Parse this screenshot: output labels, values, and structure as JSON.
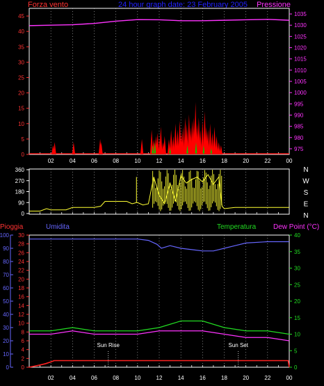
{
  "chart_data": [
    {
      "type": "area",
      "header": {
        "left": "Forza vento",
        "center": "24 hour graph date: 23 February 2005",
        "right": "Pressione"
      },
      "colors": {
        "wind": "#ff0000",
        "gust": "#00cc00",
        "pressure": "#ff33ff",
        "axis_left": "#ff3333",
        "axis_right": "#ff33ff",
        "title": "#2222ff"
      },
      "x_ticks": [
        "02",
        "04",
        "06",
        "08",
        "10",
        "12",
        "14",
        "16",
        "18",
        "20",
        "22",
        "00"
      ],
      "y_left": {
        "ticks": [
          0,
          5,
          10,
          15,
          20,
          25,
          30,
          35,
          40,
          45
        ],
        "range": [
          0,
          47.5
        ]
      },
      "y_right": {
        "ticks": [
          975,
          980,
          985,
          990,
          995,
          1000,
          1005,
          1010,
          1015,
          1020,
          1025,
          1030,
          1035
        ],
        "range": [
          972.5,
          1037.5
        ]
      },
      "pressure": {
        "x": [
          0,
          2,
          4,
          6,
          8,
          10,
          12,
          14,
          16,
          18,
          20,
          22,
          24
        ],
        "values": [
          1029.8,
          1030,
          1030.2,
          1030.8,
          1031.8,
          1032.5,
          1032.4,
          1032,
          1032,
          1032.2,
          1032.4,
          1032.6,
          1032.2
        ]
      },
      "wind_spikes": [
        {
          "x": 2.2,
          "v": 3
        },
        {
          "x": 2.35,
          "v": 4
        },
        {
          "x": 4.1,
          "v": 4
        },
        {
          "x": 6.55,
          "v": 5
        },
        {
          "x": 6.65,
          "v": 4
        },
        {
          "x": 10.4,
          "v": 5
        },
        {
          "x": 11.3,
          "v": 8
        },
        {
          "x": 11.5,
          "v": 5
        },
        {
          "x": 11.7,
          "v": 6
        },
        {
          "x": 11.85,
          "v": 7
        },
        {
          "x": 12.05,
          "v": 5
        },
        {
          "x": 12.15,
          "v": 9
        },
        {
          "x": 12.35,
          "v": 4
        },
        {
          "x": 12.5,
          "v": 6
        },
        {
          "x": 12.9,
          "v": 5
        },
        {
          "x": 13.1,
          "v": 8
        },
        {
          "x": 13.3,
          "v": 6
        },
        {
          "x": 13.5,
          "v": 10
        },
        {
          "x": 13.7,
          "v": 8
        },
        {
          "x": 13.9,
          "v": 11
        },
        {
          "x": 14.05,
          "v": 7
        },
        {
          "x": 14.2,
          "v": 9
        },
        {
          "x": 14.4,
          "v": 12
        },
        {
          "x": 14.55,
          "v": 10
        },
        {
          "x": 14.75,
          "v": 13
        },
        {
          "x": 14.9,
          "v": 9
        },
        {
          "x": 15.05,
          "v": 11
        },
        {
          "x": 15.2,
          "v": 12
        },
        {
          "x": 15.35,
          "v": 17
        },
        {
          "x": 15.5,
          "v": 10
        },
        {
          "x": 15.65,
          "v": 12
        },
        {
          "x": 15.8,
          "v": 8
        },
        {
          "x": 16.0,
          "v": 11
        },
        {
          "x": 16.2,
          "v": 14
        },
        {
          "x": 16.35,
          "v": 9
        },
        {
          "x": 16.5,
          "v": 8
        },
        {
          "x": 16.7,
          "v": 10
        },
        {
          "x": 16.9,
          "v": 7
        },
        {
          "x": 17.1,
          "v": 9
        },
        {
          "x": 17.3,
          "v": 6
        },
        {
          "x": 17.5,
          "v": 4
        },
        {
          "x": 17.7,
          "v": 3
        }
      ],
      "gust_spikes": [
        {
          "x": 11.4,
          "v": 3
        },
        {
          "x": 11.6,
          "v": 4
        },
        {
          "x": 13.0,
          "v": 2
        },
        {
          "x": 14.6,
          "v": 3
        },
        {
          "x": 15.4,
          "v": 4
        },
        {
          "x": 16.1,
          "v": 3
        },
        {
          "x": 16.8,
          "v": 2
        }
      ]
    },
    {
      "type": "line",
      "y_ticks": [
        0,
        90,
        180,
        270,
        360
      ],
      "range": [
        0,
        360
      ],
      "compass": [
        "N",
        "W",
        "S",
        "E",
        "N"
      ],
      "color": "#ffff33",
      "x": [
        0,
        1,
        1.6,
        2,
        2.5,
        3.4,
        4,
        5,
        6,
        6.6,
        7,
        8,
        9,
        9.5,
        9.9,
        10,
        10.5,
        11,
        11.5,
        12,
        12.5,
        13,
        13.5,
        14,
        14.5,
        15,
        15.5,
        16,
        16.5,
        17,
        17.5,
        17.8,
        18,
        19,
        20,
        21,
        22,
        23,
        24
      ],
      "values": [
        20,
        20,
        40,
        30,
        30,
        30,
        50,
        50,
        50,
        60,
        100,
        100,
        100,
        80,
        90,
        90,
        70,
        80,
        300,
        150,
        80,
        250,
        100,
        310,
        250,
        280,
        300,
        260,
        320,
        240,
        300,
        60,
        40,
        50,
        50,
        50,
        50,
        50,
        50
      ]
    },
    {
      "type": "line",
      "labels": {
        "rain": "Pioggia",
        "humidity": "Umidita",
        "temperature": "Temperatura",
        "dew": "Dew Point (°C)"
      },
      "colors": {
        "rain": "#ff2222",
        "humidity": "#6666ff",
        "temperature": "#22dd22",
        "dew": "#ff33ff",
        "axis_rain": "#ff3333",
        "axis_hum": "#6666ff",
        "axis_temp": "#22dd22"
      },
      "rain_ticks": [
        0,
        2,
        4,
        6,
        8,
        10,
        12,
        14,
        16,
        18,
        20,
        22,
        24,
        26,
        28,
        30
      ],
      "humidity_ticks": [
        0,
        10,
        20,
        30,
        40,
        50,
        60,
        70,
        80,
        90,
        100
      ],
      "temp_ticks": [
        0,
        5,
        10,
        15,
        20,
        25,
        30,
        35,
        40
      ],
      "rain_range": [
        0,
        30
      ],
      "temp_range": [
        0,
        40
      ],
      "annotations": [
        {
          "label": "Sun Rise",
          "x": 7.3
        },
        {
          "label": "Sun Set",
          "x": 19.3
        }
      ],
      "humidity": {
        "x": [
          0,
          2,
          4,
          6,
          8,
          10,
          11,
          11.8,
          12.2,
          13,
          14,
          15,
          16,
          17,
          17.5,
          18,
          19,
          20,
          22,
          24
        ],
        "values": [
          97,
          97,
          97,
          97,
          97,
          97,
          96,
          93,
          90,
          92,
          90,
          89,
          88,
          88,
          89,
          90,
          92,
          94,
          95,
          95
        ]
      },
      "temperature": {
        "x": [
          0,
          2,
          4,
          6,
          8,
          10,
          12,
          13,
          14,
          15,
          16,
          17,
          18,
          20,
          22,
          24
        ],
        "values": [
          11,
          11,
          12,
          11,
          11,
          11,
          12,
          13,
          14,
          14,
          14,
          13,
          12,
          11,
          11,
          10
        ]
      },
      "dew_point": {
        "x": [
          0,
          2,
          4,
          6,
          8,
          10,
          12,
          14,
          16,
          18,
          20,
          22,
          24
        ],
        "values": [
          10,
          10,
          11,
          10,
          10,
          10,
          11,
          11,
          11,
          10,
          9,
          9,
          8
        ]
      },
      "rain": {
        "x": [
          0,
          1,
          1.5,
          2,
          2.3,
          23.9,
          24
        ],
        "values": [
          0,
          0.5,
          0.8,
          1.2,
          1.5,
          1.5,
          0
        ]
      }
    }
  ]
}
